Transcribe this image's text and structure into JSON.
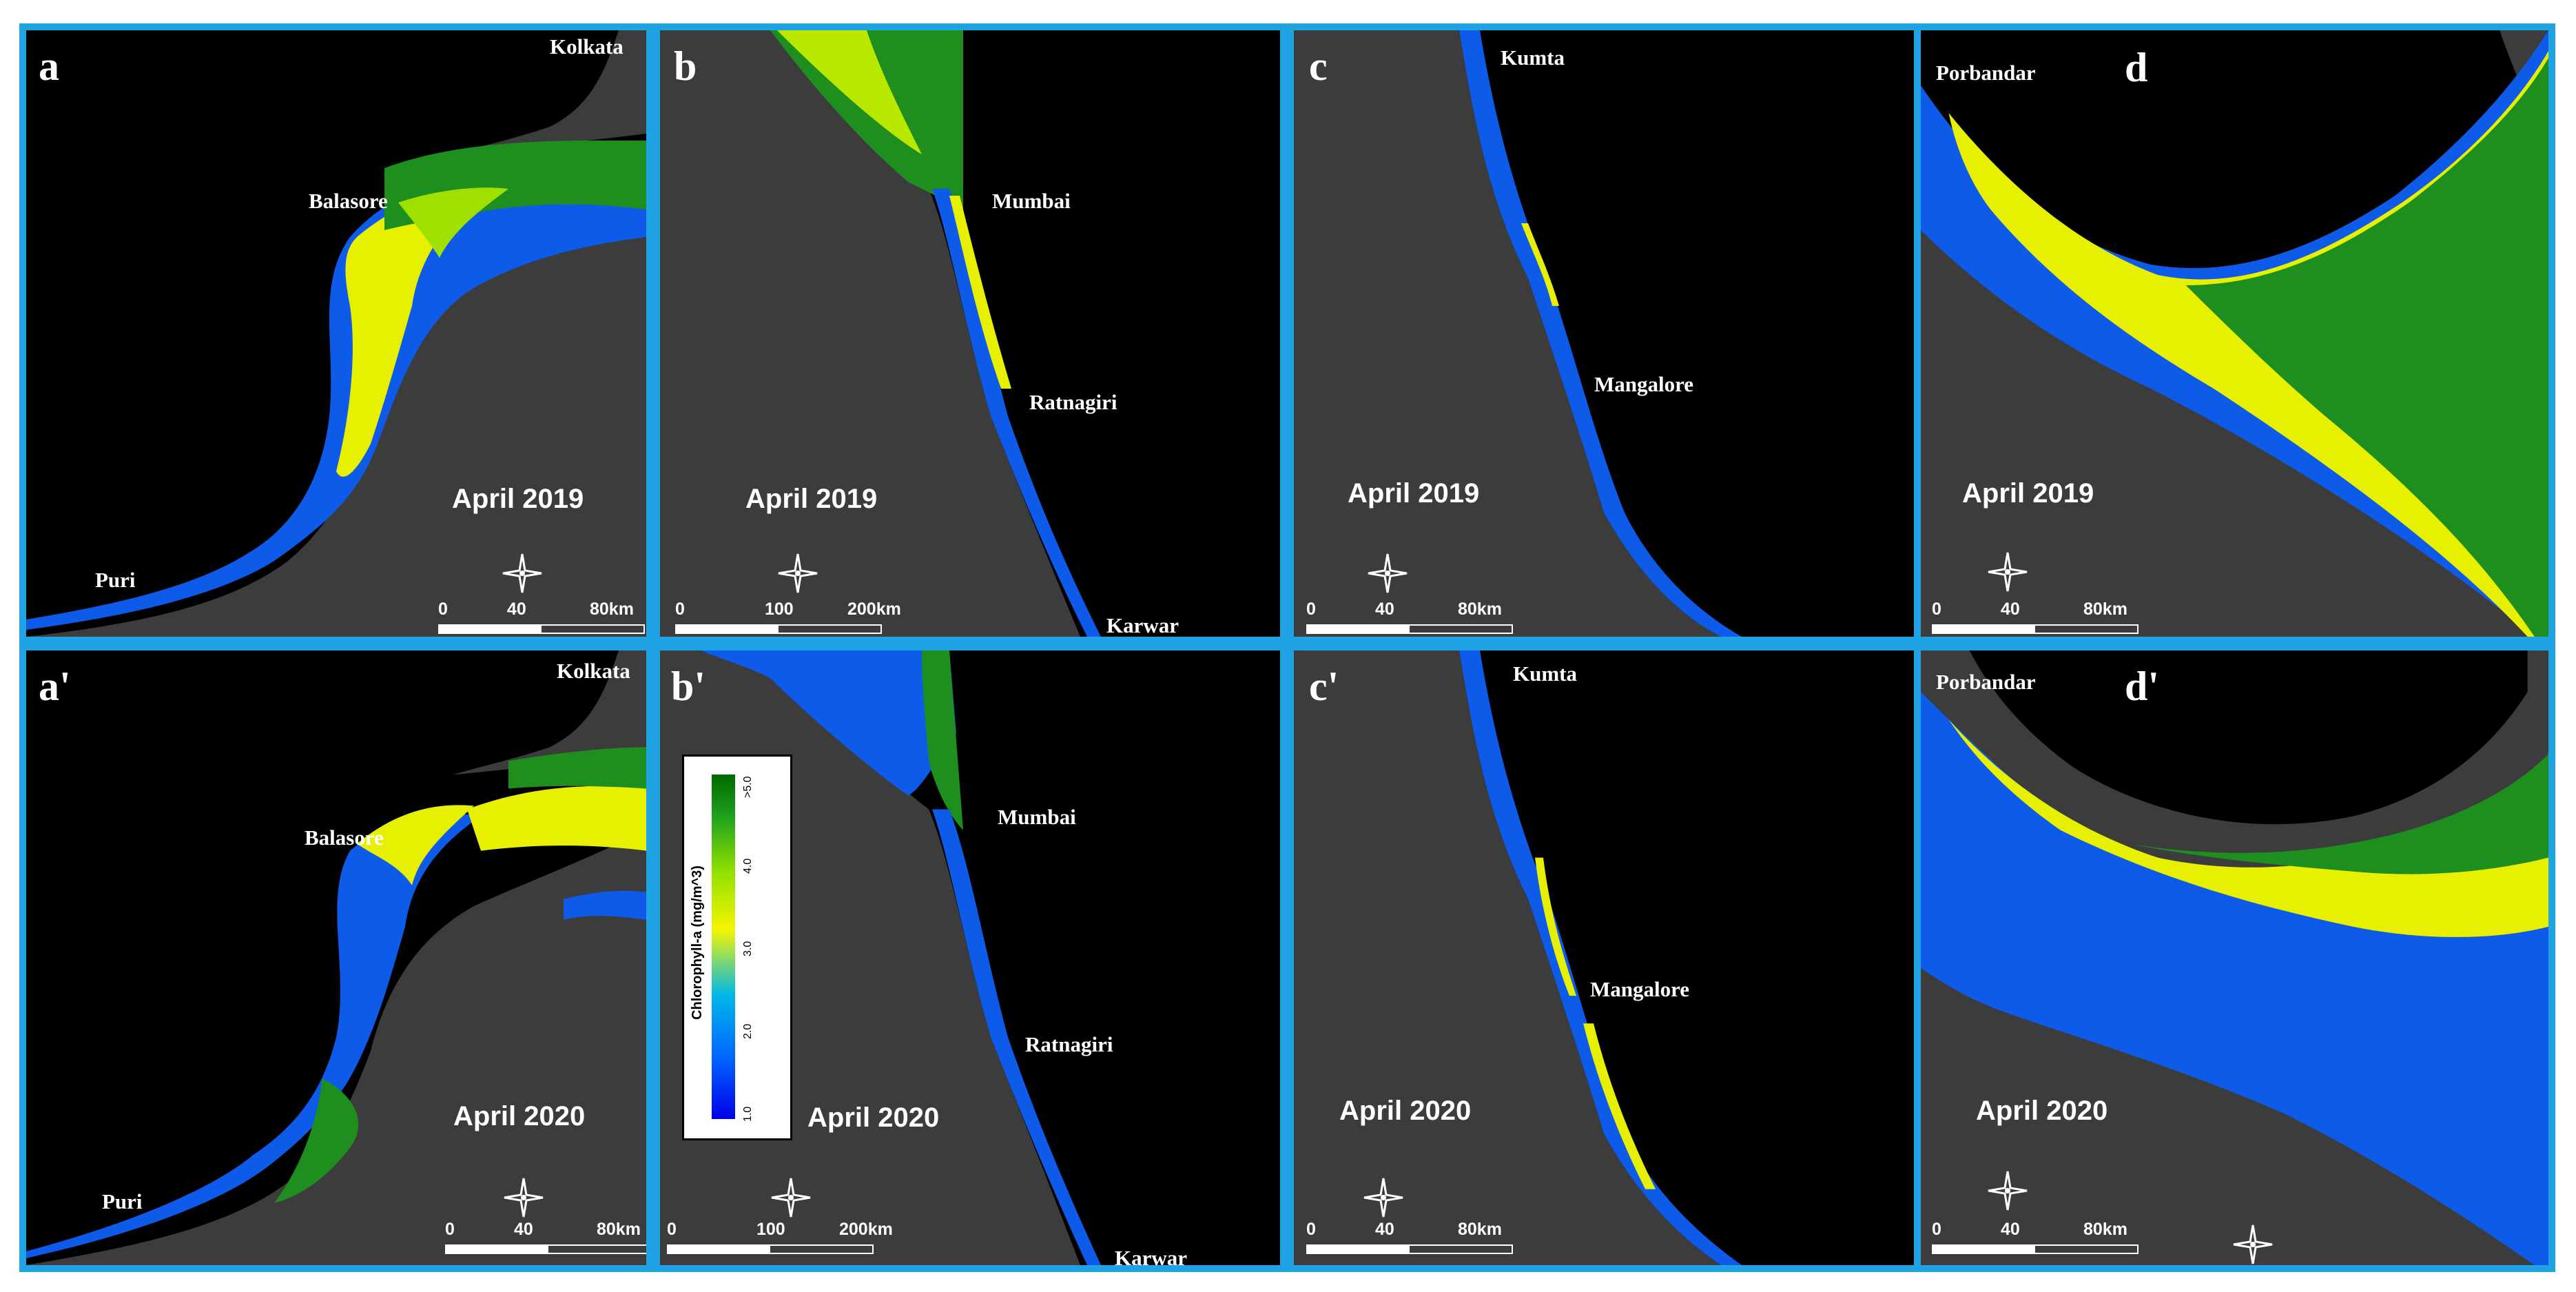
{
  "panels": [
    {
      "id": "a",
      "label": "a",
      "date": "April 2019",
      "cities": [
        "Kolkata",
        "Balasore",
        "Puri"
      ],
      "scale": [
        "0",
        "40",
        "80km"
      ]
    },
    {
      "id": "b",
      "label": "b",
      "date": "April 2019",
      "cities": [
        "Mumbai",
        "Ratnagiri",
        "Karwar"
      ],
      "scale": [
        "0",
        "100",
        "200km"
      ]
    },
    {
      "id": "c",
      "label": "c",
      "date": "April 2019",
      "cities": [
        "Kumta",
        "Mangalore"
      ],
      "scale": [
        "0",
        "40",
        "80km"
      ]
    },
    {
      "id": "d",
      "label": "d",
      "date": "April 2019",
      "cities": [
        "Porbandar"
      ],
      "scale": [
        "0",
        "40",
        "80km"
      ]
    },
    {
      "id": "a2",
      "label": "a'",
      "date": "April 2020",
      "cities": [
        "Kolkata",
        "Balasore",
        "Puri"
      ],
      "scale": [
        "0",
        "40",
        "80km"
      ]
    },
    {
      "id": "b2",
      "label": "b'",
      "date": "April 2020",
      "cities": [
        "Mumbai",
        "Ratnagiri",
        "Karwar"
      ],
      "scale": [
        "0",
        "100",
        "200km"
      ]
    },
    {
      "id": "c2",
      "label": "c'",
      "date": "April 2020",
      "cities": [
        "Kumta",
        "Mangalore"
      ],
      "scale": [
        "0",
        "40",
        "80km"
      ]
    },
    {
      "id": "d2",
      "label": "d'",
      "date": "April 2020",
      "cities": [
        "Porbandar"
      ],
      "scale": [
        "0",
        "40",
        "80km"
      ]
    }
  ],
  "legend": {
    "title": "Chlorophyll-a (mg/m^3)",
    "ticks": [
      "1.0",
      "2.0",
      "3.0",
      "4.0",
      ">5.0"
    ]
  },
  "colors": {
    "frame": "#1fa3e3",
    "land": "#3c3c3c",
    "ocean_nodata": "#000000",
    "chl_low": "#0000e8",
    "chl_mid": "#f5f500",
    "chl_high": "#006800"
  }
}
